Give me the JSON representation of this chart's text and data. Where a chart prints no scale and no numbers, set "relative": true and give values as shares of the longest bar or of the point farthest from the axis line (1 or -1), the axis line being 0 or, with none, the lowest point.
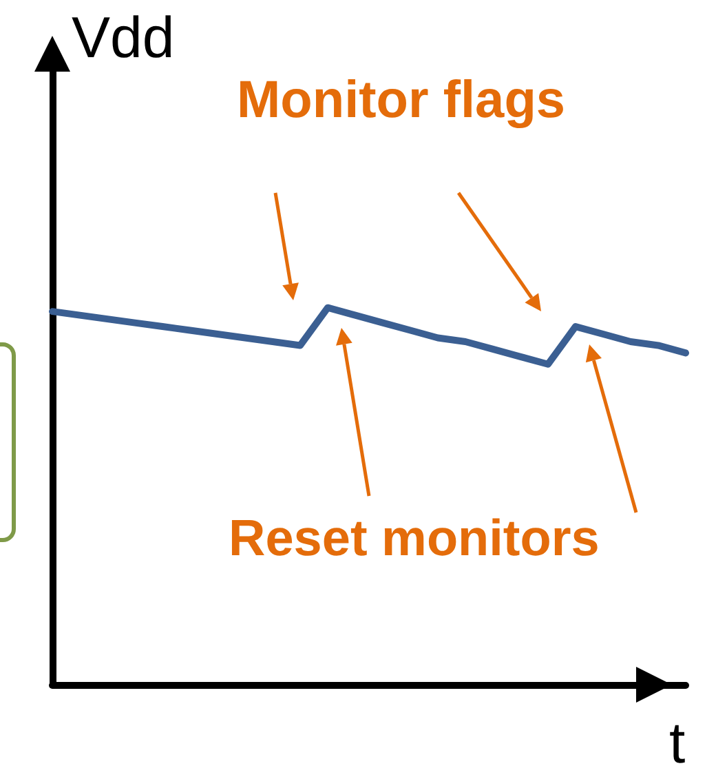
{
  "chart_data": {
    "type": "line",
    "relative": true,
    "xlabel": "t",
    "ylabel": "Vdd",
    "categories": [
      null,
      null,
      null,
      null,
      null,
      null,
      null,
      null,
      null,
      null,
      null,
      null,
      null,
      null,
      null,
      null,
      null,
      null,
      null,
      null,
      null,
      null,
      null,
      null
    ],
    "series": [
      {
        "color": "#3b5f92",
        "values": [
          0.99,
          0.98,
          0.97,
          0.96,
          0.95,
          0.94,
          0.93,
          0.92,
          0.91,
          0.9,
          1.0,
          0.98,
          0.96,
          0.94,
          0.92,
          0.91,
          0.89,
          0.87,
          0.85,
          0.95,
          0.93,
          0.91,
          0.9,
          0.88
        ]
      }
    ],
    "marker": "none",
    "line_style": "solid",
    "annotations": [
      "Monitor flags",
      "Reset monitors"
    ]
  }
}
